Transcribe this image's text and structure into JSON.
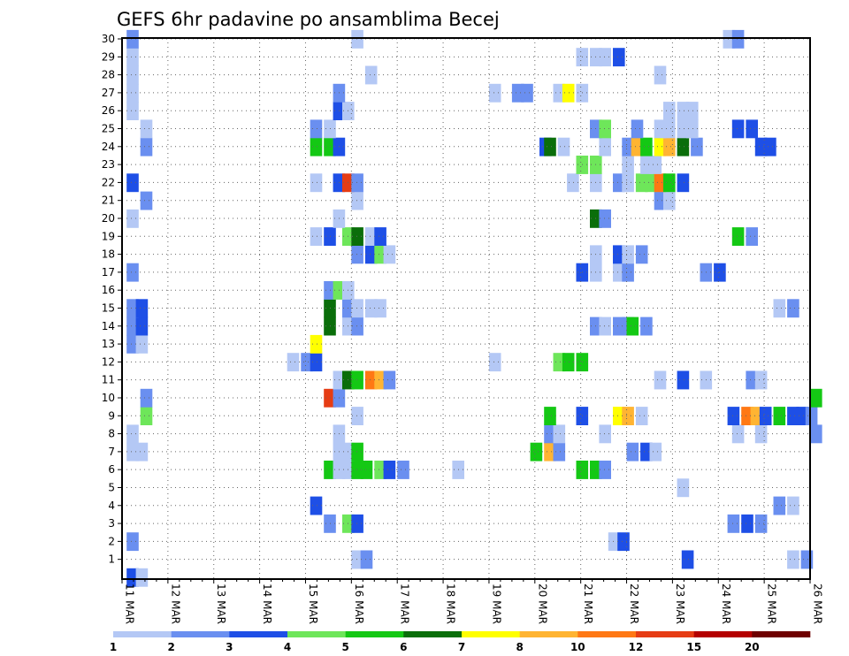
{
  "chart_data": {
    "type": "heatmap",
    "title": "GEFS 6hr padavine po ansamblima Becej",
    "x_categories": [
      "11 MAR",
      "12 MAR",
      "13 MAR",
      "14 MAR",
      "15 MAR",
      "16 MAR",
      "17 MAR",
      "18 MAR",
      "19 MAR",
      "20 MAR",
      "21 MAR",
      "22 MAR",
      "23 MAR",
      "24 MAR",
      "25 MAR",
      "26 MAR"
    ],
    "y_categories": [
      "1",
      "2",
      "3",
      "4",
      "5",
      "6",
      "7",
      "8",
      "9",
      "10",
      "11",
      "12",
      "13",
      "14",
      "15",
      "16",
      "17",
      "18",
      "19",
      "20",
      "21",
      "22",
      "23",
      "24",
      "25",
      "26",
      "27",
      "28",
      "29",
      "30"
    ],
    "time_step_hours": 6,
    "grid": "dotted",
    "colorbar": {
      "levels": [
        "1",
        "2",
        "3",
        "4",
        "5",
        "6",
        "7",
        "8",
        "10",
        "12",
        "15",
        "20"
      ],
      "colors": [
        "#b4c8f5",
        "#6a8ff0",
        "#1e4fe6",
        "#6ee65a",
        "#14c814",
        "#0a6e0a",
        "#ffff00",
        "#ffb432",
        "#ff7814",
        "#e63c14",
        "#b40000",
        "#6e0000"
      ]
    },
    "cells": [
      {
        "x": 0.1,
        "m": 0,
        "c": 3
      },
      {
        "x": 0.3,
        "m": 0,
        "c": 1
      },
      {
        "x": 5.0,
        "m": 1,
        "c": 1
      },
      {
        "x": 5.2,
        "m": 1,
        "c": 2
      },
      {
        "x": 12.2,
        "m": 1,
        "c": 3
      },
      {
        "x": 14.5,
        "m": 1,
        "c": 1
      },
      {
        "x": 14.8,
        "m": 1,
        "c": 2
      },
      {
        "x": 0.1,
        "m": 2,
        "c": 2
      },
      {
        "x": 10.6,
        "m": 2,
        "c": 1
      },
      {
        "x": 10.8,
        "m": 2,
        "c": 3
      },
      {
        "x": 4.4,
        "m": 3,
        "c": 2
      },
      {
        "x": 4.8,
        "m": 3,
        "c": 4
      },
      {
        "x": 5.0,
        "m": 3,
        "c": 3
      },
      {
        "x": 13.2,
        "m": 3,
        "c": 2
      },
      {
        "x": 13.5,
        "m": 3,
        "c": 3
      },
      {
        "x": 13.8,
        "m": 3,
        "c": 2
      },
      {
        "x": 4.1,
        "m": 4,
        "c": 3
      },
      {
        "x": 14.2,
        "m": 4,
        "c": 2
      },
      {
        "x": 14.5,
        "m": 4,
        "c": 1
      },
      {
        "x": 12.1,
        "m": 5,
        "c": 1
      },
      {
        "x": 4.4,
        "m": 6,
        "c": 5
      },
      {
        "x": 4.6,
        "m": 6,
        "c": 1
      },
      {
        "x": 4.8,
        "m": 6,
        "c": 1
      },
      {
        "x": 5.0,
        "m": 6,
        "c": 5
      },
      {
        "x": 5.2,
        "m": 6,
        "c": 5
      },
      {
        "x": 5.5,
        "m": 6,
        "c": 4
      },
      {
        "x": 5.7,
        "m": 6,
        "c": 3
      },
      {
        "x": 6.0,
        "m": 6,
        "c": 2
      },
      {
        "x": 7.2,
        "m": 6,
        "c": 1
      },
      {
        "x": 9.9,
        "m": 6,
        "c": 5
      },
      {
        "x": 10.2,
        "m": 6,
        "c": 5
      },
      {
        "x": 10.4,
        "m": 6,
        "c": 2
      },
      {
        "x": 0.1,
        "m": 7,
        "c": 1
      },
      {
        "x": 0.3,
        "m": 7,
        "c": 1
      },
      {
        "x": 4.6,
        "m": 7,
        "c": 1
      },
      {
        "x": 4.8,
        "m": 7,
        "c": 1
      },
      {
        "x": 5.0,
        "m": 7,
        "c": 5
      },
      {
        "x": 8.9,
        "m": 7,
        "c": 5
      },
      {
        "x": 9.2,
        "m": 7,
        "c": 8
      },
      {
        "x": 9.4,
        "m": 7,
        "c": 2
      },
      {
        "x": 11.0,
        "m": 7,
        "c": 2
      },
      {
        "x": 11.3,
        "m": 7,
        "c": 3
      },
      {
        "x": 11.5,
        "m": 7,
        "c": 1
      },
      {
        "x": 0.1,
        "m": 8,
        "c": 1
      },
      {
        "x": 4.6,
        "m": 8,
        "c": 1
      },
      {
        "x": 9.2,
        "m": 8,
        "c": 2
      },
      {
        "x": 9.4,
        "m": 8,
        "c": 1
      },
      {
        "x": 10.4,
        "m": 8,
        "c": 1
      },
      {
        "x": 13.3,
        "m": 8,
        "c": 1
      },
      {
        "x": 13.8,
        "m": 8,
        "c": 1
      },
      {
        "x": 15.0,
        "m": 8,
        "c": 2
      },
      {
        "x": 0.4,
        "m": 9,
        "c": 4
      },
      {
        "x": 5.0,
        "m": 9,
        "c": 1
      },
      {
        "x": 9.2,
        "m": 9,
        "c": 5
      },
      {
        "x": 9.9,
        "m": 9,
        "c": 3
      },
      {
        "x": 10.7,
        "m": 9,
        "c": 7
      },
      {
        "x": 10.9,
        "m": 9,
        "c": 8
      },
      {
        "x": 11.2,
        "m": 9,
        "c": 1
      },
      {
        "x": 13.2,
        "m": 9,
        "c": 3
      },
      {
        "x": 13.5,
        "m": 9,
        "c": 9
      },
      {
        "x": 13.7,
        "m": 9,
        "c": 8
      },
      {
        "x": 13.9,
        "m": 9,
        "c": 3
      },
      {
        "x": 14.2,
        "m": 9,
        "c": 5
      },
      {
        "x": 14.5,
        "m": 9,
        "c": 3
      },
      {
        "x": 14.7,
        "m": 9,
        "c": 3
      },
      {
        "x": 14.9,
        "m": 9,
        "c": 2
      },
      {
        "x": 0.4,
        "m": 10,
        "c": 2
      },
      {
        "x": 4.4,
        "m": 10,
        "c": 10
      },
      {
        "x": 4.6,
        "m": 10,
        "c": 2
      },
      {
        "x": 15.0,
        "m": 10,
        "c": 5
      },
      {
        "x": 4.6,
        "m": 11,
        "c": 1
      },
      {
        "x": 4.8,
        "m": 11,
        "c": 6
      },
      {
        "x": 5.0,
        "m": 11,
        "c": 5
      },
      {
        "x": 5.3,
        "m": 11,
        "c": 9
      },
      {
        "x": 5.5,
        "m": 11,
        "c": 8
      },
      {
        "x": 5.7,
        "m": 11,
        "c": 2
      },
      {
        "x": 11.6,
        "m": 11,
        "c": 1
      },
      {
        "x": 12.1,
        "m": 11,
        "c": 3
      },
      {
        "x": 12.6,
        "m": 11,
        "c": 1
      },
      {
        "x": 13.6,
        "m": 11,
        "c": 2
      },
      {
        "x": 13.8,
        "m": 11,
        "c": 1
      },
      {
        "x": 3.6,
        "m": 12,
        "c": 1
      },
      {
        "x": 3.9,
        "m": 12,
        "c": 2
      },
      {
        "x": 4.1,
        "m": 12,
        "c": 3
      },
      {
        "x": 8.0,
        "m": 12,
        "c": 1
      },
      {
        "x": 9.4,
        "m": 12,
        "c": 4
      },
      {
        "x": 9.6,
        "m": 12,
        "c": 5
      },
      {
        "x": 9.9,
        "m": 12,
        "c": 5
      },
      {
        "x": 0.1,
        "m": 13,
        "c": 2
      },
      {
        "x": 0.3,
        "m": 13,
        "c": 1
      },
      {
        "x": 4.1,
        "m": 13,
        "c": 7
      },
      {
        "x": 0.1,
        "m": 14,
        "c": 2
      },
      {
        "x": 0.3,
        "m": 14,
        "c": 3
      },
      {
        "x": 4.4,
        "m": 14,
        "c": 6
      },
      {
        "x": 4.8,
        "m": 14,
        "c": 1
      },
      {
        "x": 5.0,
        "m": 14,
        "c": 2
      },
      {
        "x": 10.2,
        "m": 14,
        "c": 2
      },
      {
        "x": 10.4,
        "m": 14,
        "c": 1
      },
      {
        "x": 10.7,
        "m": 14,
        "c": 2
      },
      {
        "x": 10.9,
        "m": 14,
        "c": 2
      },
      {
        "x": 11.0,
        "m": 14,
        "c": 5
      },
      {
        "x": 11.3,
        "m": 14,
        "c": 2
      },
      {
        "x": 0.1,
        "m": 15,
        "c": 2
      },
      {
        "x": 0.3,
        "m": 15,
        "c": 3
      },
      {
        "x": 4.4,
        "m": 15,
        "c": 6
      },
      {
        "x": 4.8,
        "m": 15,
        "c": 2
      },
      {
        "x": 5.0,
        "m": 15,
        "c": 1
      },
      {
        "x": 5.3,
        "m": 15,
        "c": 1
      },
      {
        "x": 5.5,
        "m": 15,
        "c": 1
      },
      {
        "x": 14.2,
        "m": 15,
        "c": 1
      },
      {
        "x": 14.5,
        "m": 15,
        "c": 2
      },
      {
        "x": 4.4,
        "m": 16,
        "c": 2
      },
      {
        "x": 4.6,
        "m": 16,
        "c": 4
      },
      {
        "x": 4.8,
        "m": 16,
        "c": 1
      },
      {
        "x": 0.1,
        "m": 17,
        "c": 2
      },
      {
        "x": 9.9,
        "m": 17,
        "c": 3
      },
      {
        "x": 10.2,
        "m": 17,
        "c": 1
      },
      {
        "x": 10.7,
        "m": 17,
        "c": 1
      },
      {
        "x": 10.9,
        "m": 17,
        "c": 2
      },
      {
        "x": 12.6,
        "m": 17,
        "c": 2
      },
      {
        "x": 12.9,
        "m": 17,
        "c": 3
      },
      {
        "x": 5.0,
        "m": 18,
        "c": 2
      },
      {
        "x": 5.3,
        "m": 18,
        "c": 3
      },
      {
        "x": 5.5,
        "m": 18,
        "c": 4
      },
      {
        "x": 5.7,
        "m": 18,
        "c": 1
      },
      {
        "x": 10.2,
        "m": 18,
        "c": 1
      },
      {
        "x": 10.7,
        "m": 18,
        "c": 3
      },
      {
        "x": 10.9,
        "m": 18,
        "c": 1
      },
      {
        "x": 11.2,
        "m": 18,
        "c": 2
      },
      {
        "x": 4.1,
        "m": 19,
        "c": 1
      },
      {
        "x": 4.4,
        "m": 19,
        "c": 3
      },
      {
        "x": 4.8,
        "m": 19,
        "c": 4
      },
      {
        "x": 5.0,
        "m": 19,
        "c": 6
      },
      {
        "x": 5.3,
        "m": 19,
        "c": 1
      },
      {
        "x": 5.5,
        "m": 19,
        "c": 3
      },
      {
        "x": 13.3,
        "m": 19,
        "c": 5
      },
      {
        "x": 13.6,
        "m": 19,
        "c": 2
      },
      {
        "x": 0.1,
        "m": 20,
        "c": 1
      },
      {
        "x": 4.6,
        "m": 20,
        "c": 1
      },
      {
        "x": 10.2,
        "m": 20,
        "c": 6
      },
      {
        "x": 10.4,
        "m": 20,
        "c": 2
      },
      {
        "x": 0.4,
        "m": 21,
        "c": 2
      },
      {
        "x": 5.0,
        "m": 21,
        "c": 1
      },
      {
        "x": 11.6,
        "m": 21,
        "c": 2
      },
      {
        "x": 11.8,
        "m": 21,
        "c": 1
      },
      {
        "x": 0.1,
        "m": 22,
        "c": 3
      },
      {
        "x": 4.1,
        "m": 22,
        "c": 1
      },
      {
        "x": 4.6,
        "m": 22,
        "c": 3
      },
      {
        "x": 4.8,
        "m": 22,
        "c": 10
      },
      {
        "x": 5.0,
        "m": 22,
        "c": 2
      },
      {
        "x": 9.7,
        "m": 22,
        "c": 1
      },
      {
        "x": 10.2,
        "m": 22,
        "c": 1
      },
      {
        "x": 10.7,
        "m": 22,
        "c": 2
      },
      {
        "x": 10.9,
        "m": 22,
        "c": 1
      },
      {
        "x": 11.2,
        "m": 22,
        "c": 4
      },
      {
        "x": 11.4,
        "m": 22,
        "c": 4
      },
      {
        "x": 11.6,
        "m": 22,
        "c": 9
      },
      {
        "x": 11.8,
        "m": 22,
        "c": 5
      },
      {
        "x": 12.1,
        "m": 22,
        "c": 3
      },
      {
        "x": 9.9,
        "m": 23,
        "c": 4
      },
      {
        "x": 10.2,
        "m": 23,
        "c": 4
      },
      {
        "x": 10.9,
        "m": 23,
        "c": 1
      },
      {
        "x": 11.3,
        "m": 23,
        "c": 1
      },
      {
        "x": 11.5,
        "m": 23,
        "c": 1
      },
      {
        "x": 0.4,
        "m": 24,
        "c": 2
      },
      {
        "x": 4.1,
        "m": 24,
        "c": 5
      },
      {
        "x": 4.4,
        "m": 24,
        "c": 5
      },
      {
        "x": 4.6,
        "m": 24,
        "c": 3
      },
      {
        "x": 9.1,
        "m": 24,
        "c": 3
      },
      {
        "x": 9.2,
        "m": 24,
        "c": 6
      },
      {
        "x": 9.5,
        "m": 24,
        "c": 1
      },
      {
        "x": 10.4,
        "m": 24,
        "c": 1
      },
      {
        "x": 10.9,
        "m": 24,
        "c": 2
      },
      {
        "x": 11.1,
        "m": 24,
        "c": 8
      },
      {
        "x": 11.3,
        "m": 24,
        "c": 5
      },
      {
        "x": 11.6,
        "m": 24,
        "c": 7
      },
      {
        "x": 11.8,
        "m": 24,
        "c": 8
      },
      {
        "x": 12.1,
        "m": 24,
        "c": 6
      },
      {
        "x": 12.4,
        "m": 24,
        "c": 2
      },
      {
        "x": 13.8,
        "m": 24,
        "c": 3
      },
      {
        "x": 14.0,
        "m": 24,
        "c": 3
      },
      {
        "x": 0.4,
        "m": 25,
        "c": 1
      },
      {
        "x": 4.1,
        "m": 25,
        "c": 2
      },
      {
        "x": 4.4,
        "m": 25,
        "c": 1
      },
      {
        "x": 10.2,
        "m": 25,
        "c": 2
      },
      {
        "x": 10.4,
        "m": 25,
        "c": 4
      },
      {
        "x": 11.1,
        "m": 25,
        "c": 2
      },
      {
        "x": 11.6,
        "m": 25,
        "c": 1
      },
      {
        "x": 11.8,
        "m": 25,
        "c": 1
      },
      {
        "x": 12.1,
        "m": 25,
        "c": 1
      },
      {
        "x": 12.3,
        "m": 25,
        "c": 1
      },
      {
        "x": 13.3,
        "m": 25,
        "c": 3
      },
      {
        "x": 13.6,
        "m": 25,
        "c": 3
      },
      {
        "x": 0.1,
        "m": 26,
        "c": 1
      },
      {
        "x": 4.6,
        "m": 26,
        "c": 3
      },
      {
        "x": 4.8,
        "m": 26,
        "c": 1
      },
      {
        "x": 11.8,
        "m": 26,
        "c": 1
      },
      {
        "x": 12.1,
        "m": 26,
        "c": 1
      },
      {
        "x": 12.3,
        "m": 26,
        "c": 1
      },
      {
        "x": 0.1,
        "m": 27,
        "c": 1
      },
      {
        "x": 4.6,
        "m": 27,
        "c": 2
      },
      {
        "x": 8.0,
        "m": 27,
        "c": 1
      },
      {
        "x": 8.5,
        "m": 27,
        "c": 2
      },
      {
        "x": 8.7,
        "m": 27,
        "c": 2
      },
      {
        "x": 9.4,
        "m": 27,
        "c": 1
      },
      {
        "x": 9.6,
        "m": 27,
        "c": 7
      },
      {
        "x": 9.9,
        "m": 27,
        "c": 1
      },
      {
        "x": 0.1,
        "m": 28,
        "c": 1
      },
      {
        "x": 5.3,
        "m": 28,
        "c": 1
      },
      {
        "x": 11.6,
        "m": 28,
        "c": 1
      },
      {
        "x": 0.1,
        "m": 29,
        "c": 1
      },
      {
        "x": 9.9,
        "m": 29,
        "c": 1
      },
      {
        "x": 10.2,
        "m": 29,
        "c": 1
      },
      {
        "x": 10.4,
        "m": 29,
        "c": 1
      },
      {
        "x": 10.7,
        "m": 29,
        "c": 3
      },
      {
        "x": 0.1,
        "m": 30,
        "c": 2
      },
      {
        "x": 5.0,
        "m": 30,
        "c": 1
      },
      {
        "x": 13.1,
        "m": 30,
        "c": 1
      },
      {
        "x": 13.3,
        "m": 30,
        "c": 2
      }
    ]
  }
}
